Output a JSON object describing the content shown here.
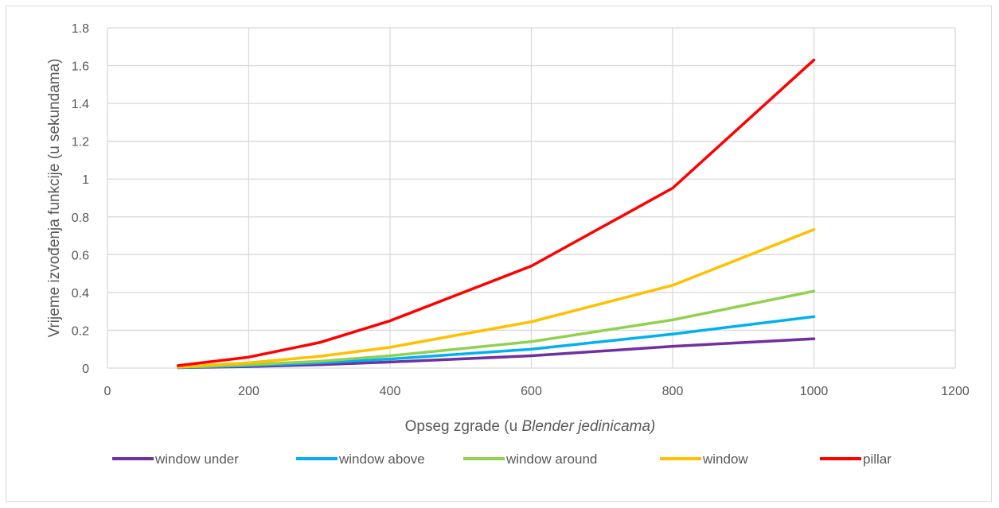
{
  "chart_data": {
    "type": "line",
    "title": "",
    "xlabel": {
      "prefix": "Opseg zgrade (u ",
      "italic": "Blender jedinicama)"
    },
    "ylabel": "Vrijeme izvođenja funkcije (u sekundama)",
    "xlim": [
      0,
      1200
    ],
    "ylim": [
      0,
      1.8
    ],
    "x_ticks": [
      "0",
      "200",
      "400",
      "600",
      "800",
      "1000",
      "1200"
    ],
    "y_ticks": [
      "0",
      "0.2",
      "0.4",
      "0.6",
      "0.8",
      "1",
      "1.2",
      "1.4",
      "1.6",
      "1.8"
    ],
    "x_tick_values": [
      0,
      200,
      400,
      "600",
      800,
      1000,
      1200
    ],
    "y_tick_values": [
      0,
      0.2,
      0.4,
      0.6,
      0.8,
      1,
      1.2,
      1.4,
      1.6,
      1.8
    ],
    "grid": true,
    "legend_position": "bottom",
    "x": [
      100,
      200,
      300,
      400,
      600,
      800,
      1000
    ],
    "series": [
      {
        "name": "window under",
        "color": "#7030a0",
        "values": [
          0.002,
          0.008,
          0.018,
          0.032,
          0.065,
          0.115,
          0.155
        ]
      },
      {
        "name": "window above",
        "color": "#00b0f0",
        "values": [
          0.003,
          0.013,
          0.028,
          0.048,
          0.1,
          0.18,
          0.272
        ]
      },
      {
        "name": "window around",
        "color": "#92d050",
        "values": [
          0.004,
          0.018,
          0.036,
          0.065,
          0.14,
          0.255,
          0.407
        ]
      },
      {
        "name": "window",
        "color": "#ffc000",
        "values": [
          0.006,
          0.028,
          0.062,
          0.11,
          0.245,
          0.438,
          0.733
        ]
      },
      {
        "name": "pillar",
        "color": "#ff0000",
        "values": [
          0.013,
          0.058,
          0.135,
          0.25,
          0.54,
          0.952,
          1.63
        ]
      }
    ]
  }
}
